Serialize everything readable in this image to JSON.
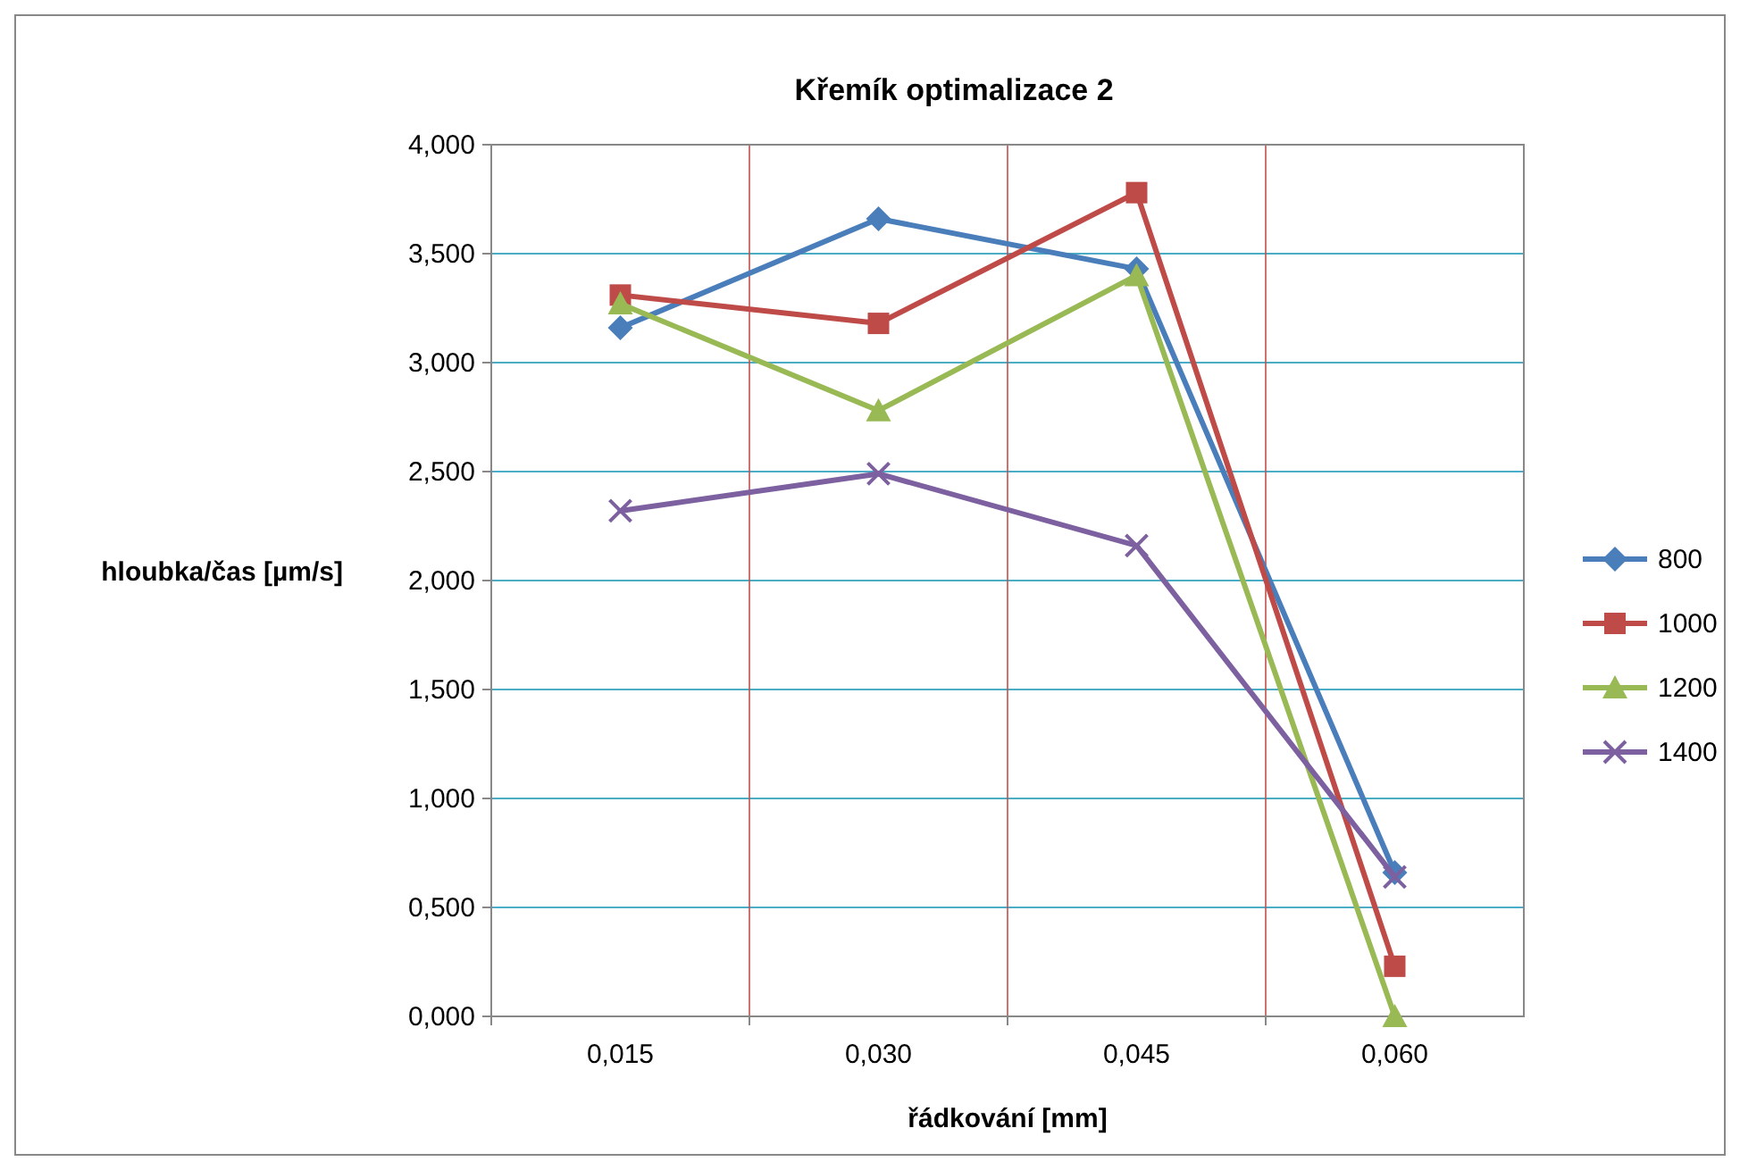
{
  "chart_data": {
    "type": "line",
    "title": "Křemík optimalizace 2",
    "xlabel": "řádkování [mm]",
    "ylabel": "hloubka/čas [µm/s]",
    "categories": [
      "0,015",
      "0,030",
      "0,045",
      "0,060"
    ],
    "series": [
      {
        "name": "800",
        "color": "#4a7ebb",
        "marker": "diamond",
        "values": [
          3.16,
          3.66,
          3.43,
          0.66
        ]
      },
      {
        "name": "1000",
        "color": "#be4b48",
        "marker": "square",
        "values": [
          3.31,
          3.18,
          3.78,
          0.23
        ]
      },
      {
        "name": "1200",
        "color": "#98b954",
        "marker": "triangle",
        "values": [
          3.27,
          2.78,
          3.4,
          0
        ]
      },
      {
        "name": "1400",
        "color": "#7d60a0",
        "marker": "cross",
        "values": [
          2.32,
          2.49,
          2.16,
          0.64
        ]
      }
    ],
    "ylim": [
      0,
      4
    ],
    "yticks": [
      {
        "value": 0,
        "label": "0,000"
      },
      {
        "value": 0.5,
        "label": "0,500"
      },
      {
        "value": 1,
        "label": "1,000"
      },
      {
        "value": 1.5,
        "label": "1,500"
      },
      {
        "value": 2,
        "label": "2,000"
      },
      {
        "value": 2.5,
        "label": "2,500"
      },
      {
        "value": 3,
        "label": "3,000"
      },
      {
        "value": 3.5,
        "label": "3,500"
      },
      {
        "value": 4,
        "label": "4,000"
      }
    ],
    "grid": true,
    "legend": "right",
    "line_style": "solid"
  }
}
